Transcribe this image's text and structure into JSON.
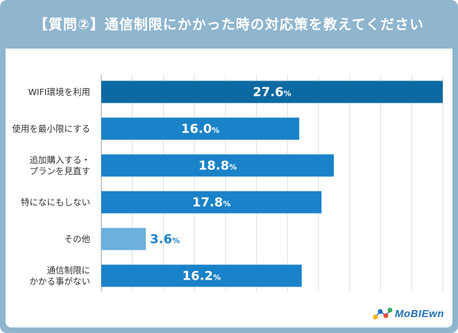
{
  "title": "【質問②】通信制限にかかった時の対応策を教えてください",
  "logo": {
    "text": "MoBIEwn",
    "icon": "molecule-dots-icon"
  },
  "colors": {
    "frame": "#8fb5cf",
    "bar_top": "#0b6aa2",
    "bar": "#1a82c8",
    "bar_other": "#6cb0dc",
    "label_inside": "#ffffff",
    "label_outside": "#1a82c8"
  },
  "chart_data": {
    "type": "bar",
    "orientation": "horizontal",
    "title": "【質問②】通信制限にかかった時の対応策を教えてください",
    "categories": [
      "WIFI環境を利用",
      "使用を最小限にする",
      "追加購入する・\nプランを見直す",
      "特になにもしない",
      "その他",
      "通信制限に\nかかる事がない"
    ],
    "values": [
      27.6,
      16.0,
      18.8,
      17.8,
      3.6,
      16.2
    ],
    "value_labels": [
      "27.6",
      "16.0",
      "18.8",
      "17.8",
      "3.6",
      "16.2"
    ],
    "unit": "%",
    "xlim": [
      0,
      27.6
    ],
    "grid": true
  }
}
